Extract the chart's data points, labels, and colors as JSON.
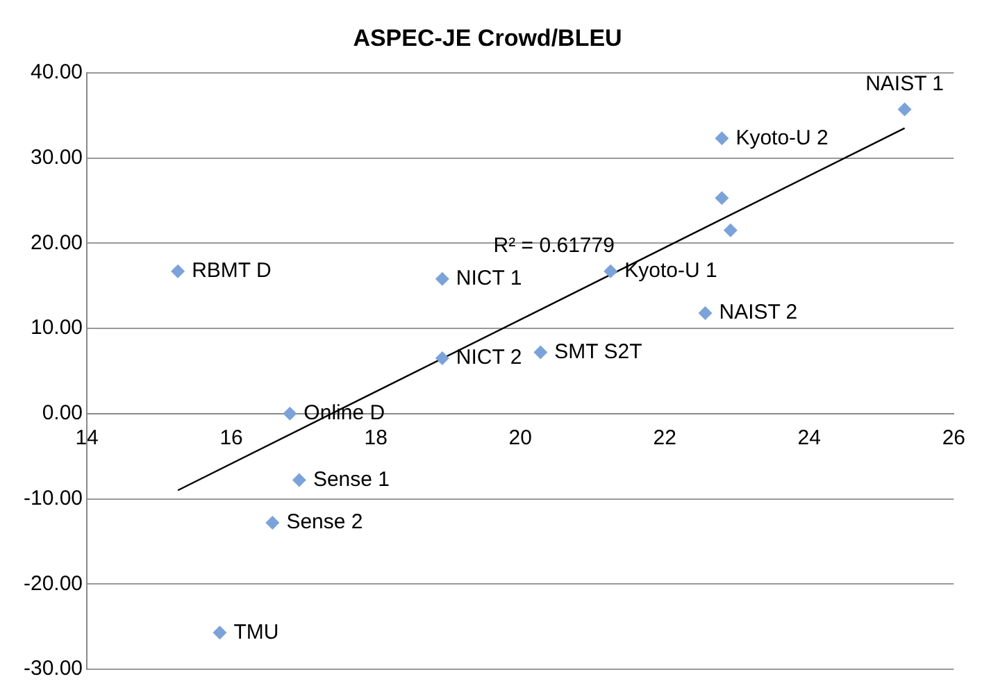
{
  "chart_data": {
    "type": "scatter",
    "title": "ASPEC-JE Crowd/BLEU",
    "series": [
      {
        "type": "scatter",
        "color": "#7ba3d9",
        "marker": "diamond",
        "x": [
          15.26,
          18.92,
          21.25,
          18.92,
          20.28,
          16.81,
          16.94,
          16.57,
          15.84,
          25.32,
          22.79,
          22.79,
          22.91,
          22.56
        ],
        "values": [
          16.7,
          15.8,
          16.7,
          6.5,
          7.2,
          0,
          -7.8,
          -12.8,
          -25.7,
          35.7,
          32.3,
          25.3,
          21.5,
          11.8
        ]
      },
      {
        "type": "line",
        "color": "#000000",
        "marker": "none",
        "x": [
          15.26,
          25.32
        ],
        "values": [
          -9.0,
          33.5
        ]
      }
    ],
    "annotations": [
      {
        "text": "RBMT D",
        "x": 15.26,
        "y": 16.7
      },
      {
        "text": "NICT 1",
        "x": 18.92,
        "y": 15.8
      },
      {
        "text": "Kyoto-U 1",
        "x": 21.25,
        "y": 16.7
      },
      {
        "text": "NICT 2",
        "x": 18.92,
        "y": 6.5
      },
      {
        "text": "SMT S2T",
        "x": 20.28,
        "y": 7.2
      },
      {
        "text": "Online D",
        "x": 16.81,
        "y": 0
      },
      {
        "text": "Sense 1",
        "x": 16.94,
        "y": -7.8
      },
      {
        "text": "Sense 2",
        "x": 16.57,
        "y": -12.8
      },
      {
        "text": "TMU",
        "x": 15.84,
        "y": -25.7
      },
      {
        "text": "NAIST 1",
        "x": 25.32,
        "y": 35.7
      },
      {
        "text": "Kyoto-U 2",
        "x": 22.79,
        "y": 32.3
      },
      {
        "text": "NAIST 2",
        "x": 22.56,
        "y": 11.8
      },
      "R² = 0.61779"
    ],
    "xlim": [
      14,
      26
    ],
    "xticks": [
      14,
      16,
      18,
      20,
      22,
      24,
      26
    ],
    "ylim": [
      -30,
      40
    ],
    "yticks": [
      {
        "value": -30,
        "label": "-30.00"
      },
      {
        "value": -20,
        "label": "-20.00"
      },
      {
        "value": -10,
        "label": "-10.00"
      },
      {
        "value": 0,
        "label": "0.00"
      },
      {
        "value": 10,
        "label": "10.00"
      },
      {
        "value": 20,
        "label": "20.00"
      },
      {
        "value": 30,
        "label": "30.00"
      },
      {
        "value": 40,
        "label": "40.00"
      }
    ],
    "grid": "y",
    "legend": false
  }
}
